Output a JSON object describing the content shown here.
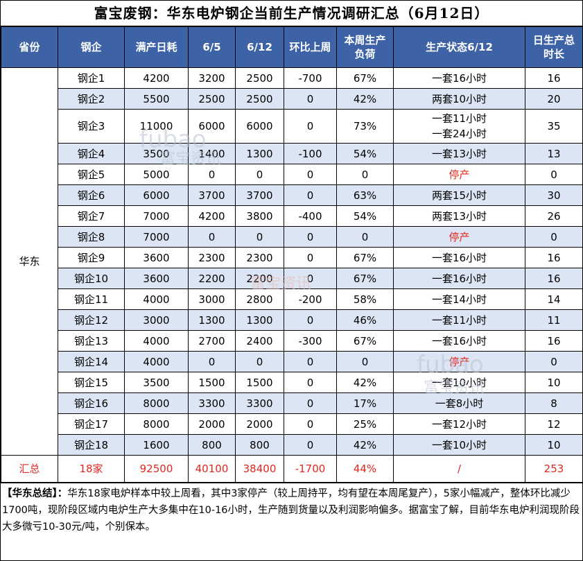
{
  "title": "富宝废钢：华东电炉钢企当前生产情况调研汇总（6月12日）",
  "headers": [
    "省份",
    "钢企",
    "满产日耗",
    "6/5",
    "6/12",
    "环比上周",
    "本周生产负荷",
    "生产状态6/12",
    "日生产总时长"
  ],
  "region": "华东",
  "rows": [
    {
      "name": "钢企1",
      "full": "4200",
      "d65": "3200",
      "d612": "2500",
      "wow": "-700",
      "load": "67%",
      "status": "一套16小时",
      "hours": "16"
    },
    {
      "name": "钢企2",
      "full": "5500",
      "d65": "2500",
      "d612": "2500",
      "wow": "0",
      "load": "42%",
      "status": "两套10小时",
      "hours": "20"
    },
    {
      "name": "钢企3",
      "full": "11000",
      "d65": "6000",
      "d612": "6000",
      "wow": "0",
      "load": "73%",
      "status": "一套11小时",
      "status2": "一套24小时",
      "hours": "35"
    },
    {
      "name": "钢企4",
      "full": "3500",
      "d65": "1400",
      "d612": "1300",
      "wow": "-100",
      "load": "54%",
      "status": "一套13小时",
      "hours": "13"
    },
    {
      "name": "钢企5",
      "full": "5000",
      "d65": "0",
      "d612": "0",
      "wow": "0",
      "load": "0",
      "status": "停产",
      "hours": "0"
    },
    {
      "name": "钢企6",
      "full": "6000",
      "d65": "3700",
      "d612": "3700",
      "wow": "0",
      "load": "63%",
      "status": "两套15小时",
      "hours": "30"
    },
    {
      "name": "钢企7",
      "full": "7000",
      "d65": "4200",
      "d612": "3800",
      "wow": "-400",
      "load": "54%",
      "status": "两套13小时",
      "hours": "26"
    },
    {
      "name": "钢企8",
      "full": "7000",
      "d65": "0",
      "d612": "0",
      "wow": "0",
      "load": "0",
      "status": "停产",
      "hours": "0"
    },
    {
      "name": "钢企9",
      "full": "3600",
      "d65": "2300",
      "d612": "2300",
      "wow": "0",
      "load": "67%",
      "status": "一套16小时",
      "hours": "16"
    },
    {
      "name": "钢企10",
      "full": "3600",
      "d65": "2200",
      "d612": "2200",
      "wow": "0",
      "load": "67%",
      "status": "一套16小时",
      "hours": "16"
    },
    {
      "name": "钢企11",
      "full": "4000",
      "d65": "3000",
      "d612": "2800",
      "wow": "-200",
      "load": "58%",
      "status": "一套14小时",
      "hours": "14"
    },
    {
      "name": "钢企12",
      "full": "3000",
      "d65": "1300",
      "d612": "1300",
      "wow": "0",
      "load": "46%",
      "status": "一套11小时",
      "hours": "11"
    },
    {
      "name": "钢企13",
      "full": "4000",
      "d65": "2700",
      "d612": "2400",
      "wow": "-300",
      "load": "67%",
      "status": "一套16小时",
      "hours": "16"
    },
    {
      "name": "钢企14",
      "full": "4000",
      "d65": "0",
      "d612": "0",
      "wow": "0",
      "load": "0",
      "status": "停产",
      "hours": "0"
    },
    {
      "name": "钢企15",
      "full": "3500",
      "d65": "1500",
      "d612": "1500",
      "wow": "0",
      "load": "42%",
      "status": "一套10小时",
      "hours": "10"
    },
    {
      "name": "钢企16",
      "full": "8000",
      "d65": "3300",
      "d612": "3300",
      "wow": "0",
      "load": "17%",
      "status": "一套8小时",
      "hours": "8"
    },
    {
      "name": "钢企17",
      "full": "8000",
      "d65": "2000",
      "d612": "2000",
      "wow": "0",
      "load": "25%",
      "status": "一套12小时",
      "hours": "12"
    },
    {
      "name": "钢企18",
      "full": "1600",
      "d65": "800",
      "d612": "800",
      "wow": "0",
      "load": "42%",
      "status": "一套10小时",
      "hours": "10"
    }
  ],
  "total": {
    "label": "汇总",
    "count": "18家",
    "full": "92500",
    "d65": "40100",
    "d612": "38400",
    "wow": "-1700",
    "load": "44%",
    "status": "/",
    "hours": "253"
  },
  "summary": {
    "head": "【华东总结】：",
    "text": "华东18家电炉样本中较上周看，其中3家停产（较上周持平，均有望在本周尾复产），5家小幅减产，整体环比减少1700吨，现阶段区域内电炉生产大多集中在10-16小时，生产随到货量以及利润影响偏多。据富宝了解，目前华东电炉利润现阶段大多微亏10-30元/吨，个别保本。"
  },
  "watermarks": [
    "fubao",
    "富宝资讯"
  ],
  "colors": {
    "header_bg": "#3d63a6",
    "alt_row": "#dce5f3",
    "red": "#e0261d"
  }
}
